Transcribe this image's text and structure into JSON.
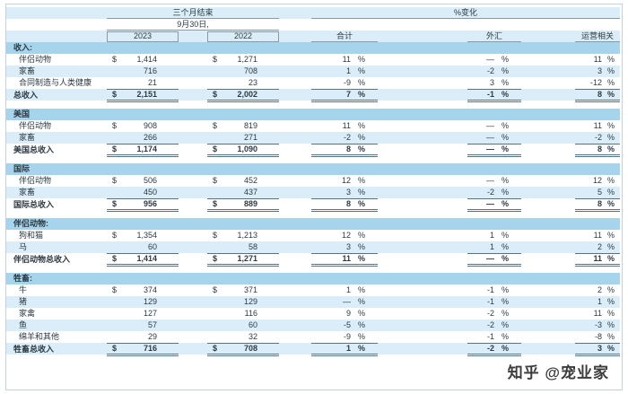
{
  "header": {
    "period_title": "三个月结束",
    "date_label": "9月30日,",
    "pct_change_title": "%变化",
    "col_2023": "2023",
    "col_2022": "2022",
    "col_total": "合计",
    "col_fx": "外汇",
    "col_operational": "运营相关",
    "pct_symbol": "%"
  },
  "colors": {
    "section_bg": "#a6d4ec",
    "stripe_bg": "#dbedf8",
    "border": "#8a9aa5",
    "text": "#2e3a43"
  },
  "rows": [
    {
      "type": "section",
      "label": "收入:"
    },
    {
      "type": "data",
      "bg": "white",
      "label": "伴侣动物",
      "d1": "$",
      "v1": "1,414",
      "d2": "$",
      "v2": "1,271",
      "t": "11",
      "f": "—",
      "o": "11"
    },
    {
      "type": "data",
      "bg": "blue",
      "label": "家畜",
      "d1": "",
      "v1": "716",
      "d2": "",
      "v2": "708",
      "t": "1",
      "f": "-2",
      "o": "3"
    },
    {
      "type": "data",
      "bg": "white",
      "label": "合同制造与人类健康",
      "d1": "",
      "v1": "21",
      "d2": "",
      "v2": "23",
      "t": "-9",
      "f": "3",
      "o": "-12"
    },
    {
      "type": "total",
      "bg": "blue",
      "label": "总收入",
      "d1": "$",
      "v1": "2,151",
      "d2": "$",
      "v2": "2,002",
      "t": "7",
      "f": "-1",
      "o": "8"
    },
    {
      "type": "spacer"
    },
    {
      "type": "section",
      "label": "美国"
    },
    {
      "type": "data",
      "bg": "white",
      "label": "伴侣动物",
      "d1": "$",
      "v1": "908",
      "d2": "$",
      "v2": "819",
      "t": "11",
      "f": "—",
      "o": "11"
    },
    {
      "type": "data",
      "bg": "blue",
      "label": "家畜",
      "d1": "",
      "v1": "266",
      "d2": "",
      "v2": "271",
      "t": "-2",
      "f": "—",
      "o": "-2"
    },
    {
      "type": "total",
      "bg": "white",
      "label": "美国总收入",
      "d1": "$",
      "v1": "1,174",
      "d2": "$",
      "v2": "1,090",
      "t": "8",
      "f": "—",
      "o": "8"
    },
    {
      "type": "spacer"
    },
    {
      "type": "section",
      "label": "国际"
    },
    {
      "type": "data",
      "bg": "white",
      "label": "伴侣动物",
      "d1": "$",
      "v1": "506",
      "d2": "$",
      "v2": "452",
      "t": "12",
      "f": "—",
      "o": "12"
    },
    {
      "type": "data",
      "bg": "blue",
      "label": "家畜",
      "d1": "",
      "v1": "450",
      "d2": "",
      "v2": "437",
      "t": "3",
      "f": "-2",
      "o": "5"
    },
    {
      "type": "total",
      "bg": "white",
      "label": "国际总收入",
      "d1": "$",
      "v1": "956",
      "d2": "$",
      "v2": "889",
      "t": "8",
      "f": "—",
      "o": "8"
    },
    {
      "type": "spacer"
    },
    {
      "type": "section",
      "label": "伴侣动物:"
    },
    {
      "type": "data",
      "bg": "white",
      "label": "狗和猫",
      "d1": "$",
      "v1": "1,354",
      "d2": "$",
      "v2": "1,213",
      "t": "12",
      "f": "1",
      "o": "11"
    },
    {
      "type": "data",
      "bg": "blue",
      "label": "马",
      "d1": "",
      "v1": "60",
      "d2": "",
      "v2": "58",
      "t": "3",
      "f": "1",
      "o": "2"
    },
    {
      "type": "total",
      "bg": "white",
      "label": "伴侣动物总收入",
      "d1": "$",
      "v1": "1,414",
      "d2": "$",
      "v2": "1,271",
      "t": "11",
      "f": "—",
      "o": "11"
    },
    {
      "type": "spacer"
    },
    {
      "type": "section",
      "label": "牲畜:"
    },
    {
      "type": "data",
      "bg": "white",
      "label": "牛",
      "d1": "$",
      "v1": "374",
      "d2": "$",
      "v2": "371",
      "t": "1",
      "f": "-1",
      "o": "2"
    },
    {
      "type": "data",
      "bg": "blue",
      "label": "猪",
      "d1": "",
      "v1": "129",
      "d2": "",
      "v2": "129",
      "t": "—",
      "f": "-1",
      "o": "1"
    },
    {
      "type": "data",
      "bg": "white",
      "label": "家禽",
      "d1": "",
      "v1": "127",
      "d2": "",
      "v2": "116",
      "t": "9",
      "f": "-2",
      "o": "11"
    },
    {
      "type": "data",
      "bg": "blue",
      "label": "鱼",
      "d1": "",
      "v1": "57",
      "d2": "",
      "v2": "60",
      "t": "-5",
      "f": "-2",
      "o": "-3"
    },
    {
      "type": "data",
      "bg": "white",
      "label": "绵羊和其他",
      "d1": "",
      "v1": "29",
      "d2": "",
      "v2": "32",
      "t": "-9",
      "f": "-1",
      "o": "-8"
    },
    {
      "type": "total",
      "bg": "blue",
      "label": "牲畜总收入",
      "d1": "$",
      "v1": "716",
      "d2": "$",
      "v2": "708",
      "t": "1",
      "f": "-2",
      "o": "3"
    }
  ],
  "watermark": "知乎 @宠业家"
}
